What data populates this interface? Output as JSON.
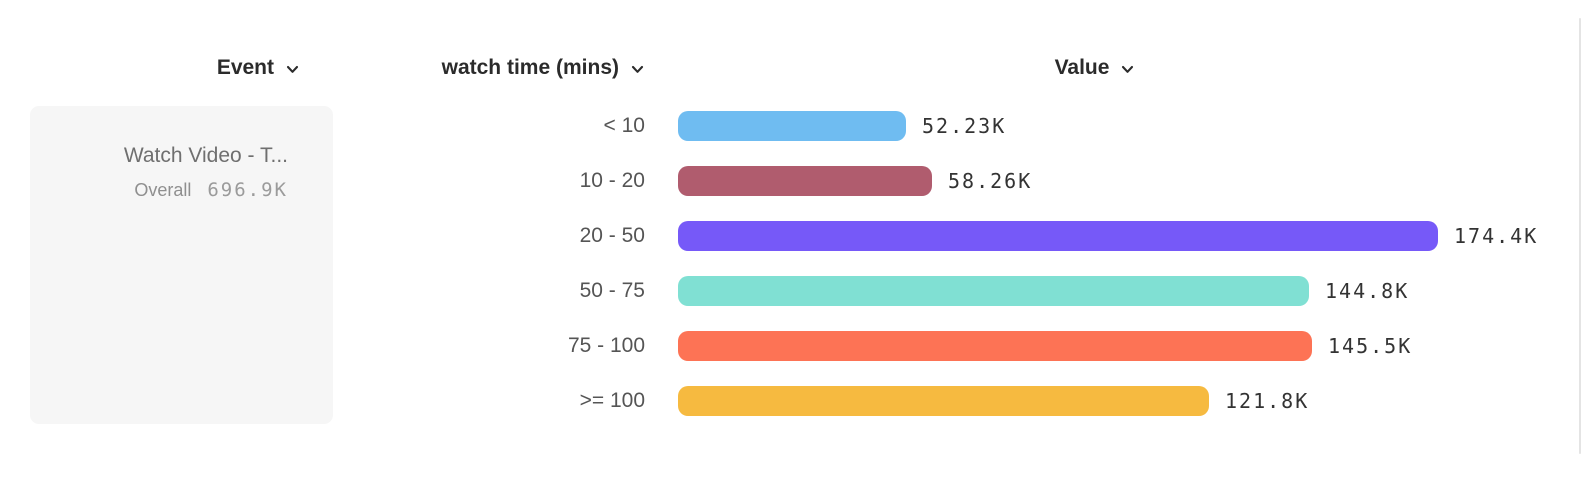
{
  "headers": {
    "event": "Event",
    "watch_time": "watch time (mins)",
    "value": "Value"
  },
  "event_panel": {
    "name": "Watch Video - T...",
    "overall_label": "Overall",
    "overall_value": "696.9K"
  },
  "chart_data": {
    "type": "bar",
    "orientation": "horizontal",
    "title": "",
    "xlabel": "Value",
    "ylabel": "watch time (mins)",
    "series_name": "Watch Video - T...",
    "categories": [
      "< 10",
      "10 - 20",
      "20 - 50",
      "50 - 75",
      "75 - 100",
      ">= 100"
    ],
    "values": [
      52230,
      58260,
      174400,
      144800,
      145500,
      121800
    ],
    "value_labels": [
      "52.23K",
      "58.26K",
      "174.4K",
      "144.8K",
      "145.5K",
      "121.8K"
    ],
    "bar_colors": [
      "#6fbcf1",
      "#b05c6e",
      "#7659f8",
      "#80e0d3",
      "#fd7355",
      "#f6ba40"
    ],
    "max_value": 174400,
    "grid": false,
    "legend": false
  },
  "colors": {
    "panel_bg": "#f6f6f6",
    "divider": "#e4e4e4",
    "header_text": "#2b2b2b",
    "category_text": "#555555",
    "value_text": "#333333"
  }
}
